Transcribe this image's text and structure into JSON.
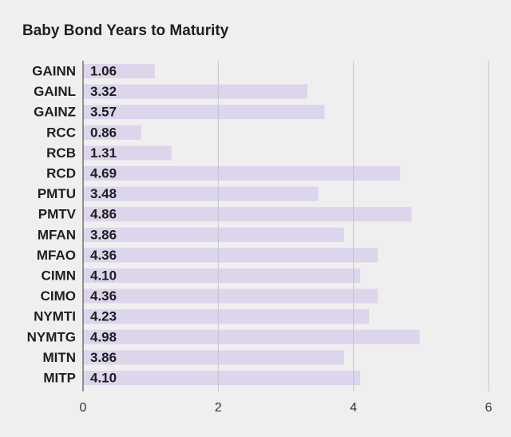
{
  "chart_data": {
    "type": "bar",
    "orientation": "horizontal",
    "title": "Baby Bond Years to Maturity",
    "xlabel": "",
    "ylabel": "",
    "categories": [
      "GAINN",
      "GAINL",
      "GAINZ",
      "RCC",
      "RCB",
      "RCD",
      "PMTU",
      "PMTV",
      "MFAN",
      "MFAO",
      "CIMN",
      "CIMO",
      "NYMTI",
      "NYMTG",
      "MITN",
      "MITP"
    ],
    "values": [
      1.06,
      3.32,
      3.57,
      0.86,
      1.31,
      4.69,
      3.48,
      4.86,
      3.86,
      4.36,
      4.1,
      4.36,
      4.23,
      4.98,
      3.86,
      4.1
    ],
    "value_labels": [
      "1.06",
      "3.32",
      "3.57",
      "0.86",
      "1.31",
      "4.69",
      "3.48",
      "4.86",
      "3.86",
      "4.36",
      "4.10",
      "4.36",
      "4.23",
      "4.98",
      "3.86",
      "4.10"
    ],
    "xlim": [
      0,
      6
    ],
    "xticks": [
      "0",
      "2",
      "4",
      "6"
    ],
    "grid": true,
    "legend": "none",
    "colors": {
      "bar": "#dcd5ec",
      "gridline": "#c4c4c4",
      "background": "#efefef",
      "text": "#1f1f1f"
    }
  }
}
